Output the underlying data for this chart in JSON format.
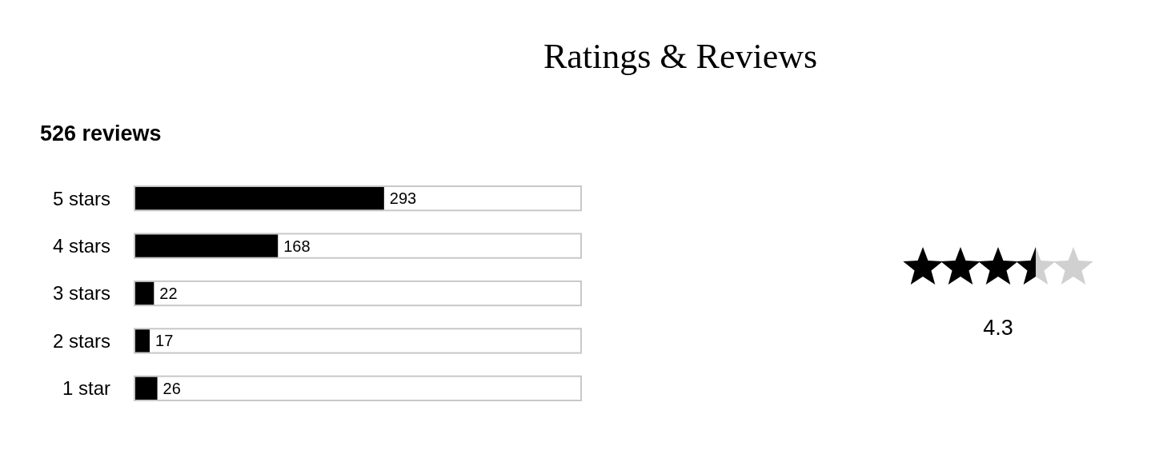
{
  "chart_data": {
    "type": "bar",
    "orientation": "horizontal",
    "title": "Ratings & Reviews",
    "subtitle": "526 reviews",
    "categories": [
      "5 stars",
      "4 stars",
      "3 stars",
      "2 stars",
      "1 star"
    ],
    "values": [
      293,
      168,
      22,
      17,
      26
    ],
    "color": "#000000",
    "data_labels": true,
    "annotations": [
      "4.3"
    ]
  }
}
